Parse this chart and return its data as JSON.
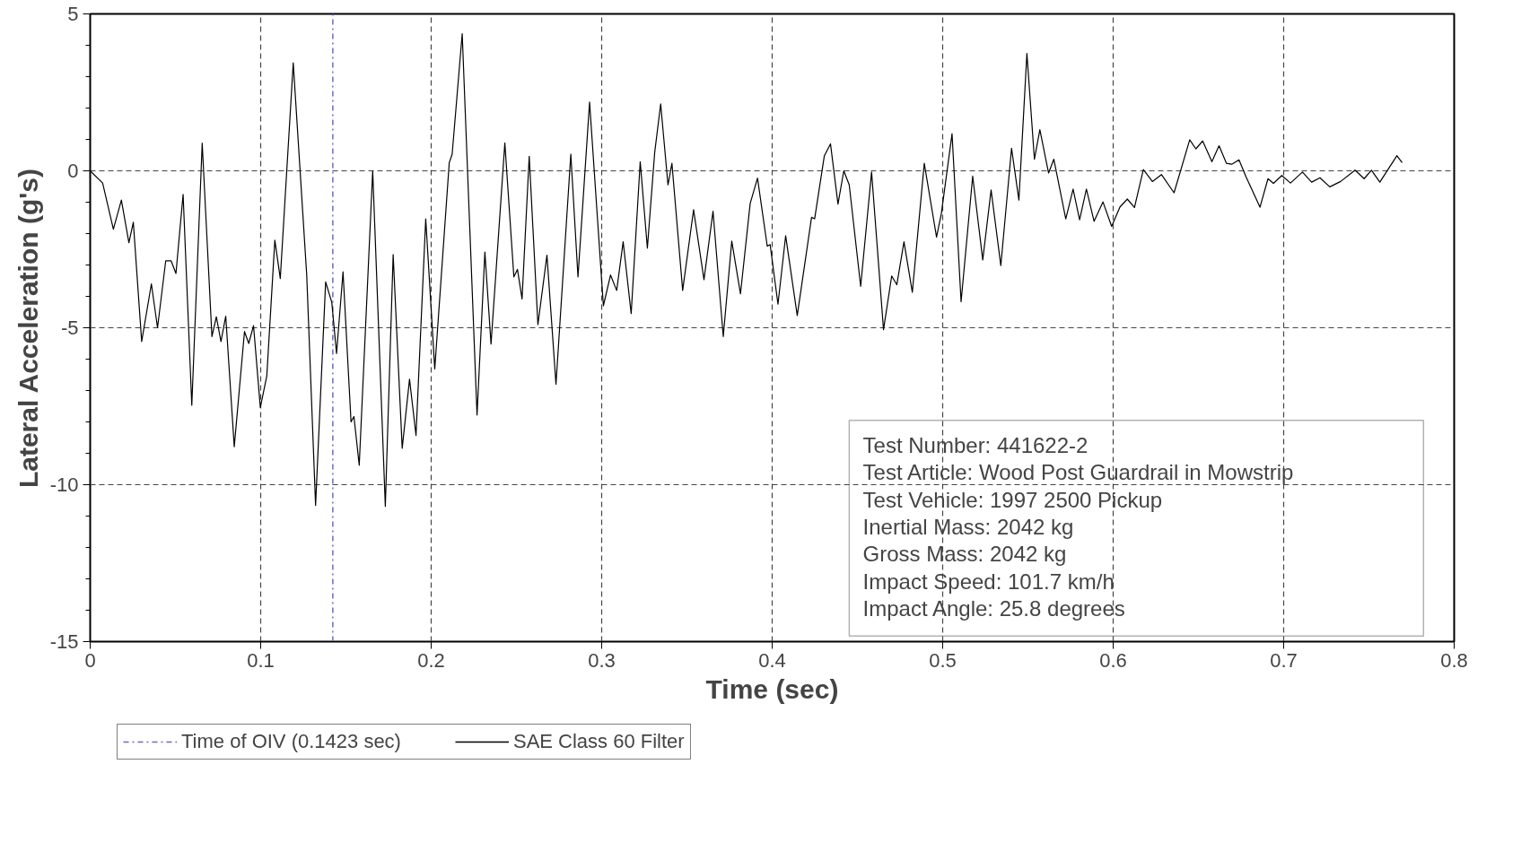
{
  "chart_data": {
    "type": "line",
    "xlabel": "Time (sec)",
    "ylabel": "Lateral Acceleration (g's)",
    "xlim": [
      0,
      0.8
    ],
    "ylim": [
      -15,
      5
    ],
    "xticks": [
      0,
      0.1,
      0.2,
      0.3,
      0.4,
      0.5,
      0.6,
      0.7,
      0.8
    ],
    "yticks": [
      -15,
      -10,
      -5,
      0,
      5
    ],
    "grid": true,
    "legend": "bottom",
    "line_style": "solid",
    "marker": "none",
    "ref_lines": [
      {
        "axis": "x",
        "value": 0.1423,
        "label": "Time of OIV (0.1423 sec)",
        "color": "#6a6ac8",
        "line_style": "dashdot"
      }
    ],
    "annotations": [
      "Test Number: 441622-2",
      "Test Article: Wood Post Guardrail in Mowstrip",
      "Test Vehicle: 1997 2500 Pickup",
      "Inertial Mass: 2042 kg",
      "Gross Mass: 2042 kg",
      "Impact Speed: 101.7 km/h",
      "Impact Angle: 25.8 degrees"
    ],
    "series": [
      {
        "name": "SAE Class 60 Filter",
        "color": "#000000",
        "x": [
          0,
          0.0073,
          0.0136,
          0.0183,
          0.0227,
          0.0253,
          0.0302,
          0.0359,
          0.0395,
          0.0443,
          0.0475,
          0.0503,
          0.0545,
          0.0596,
          0.0657,
          0.0714,
          0.074,
          0.0767,
          0.0795,
          0.0845,
          0.0905,
          0.093,
          0.0958,
          0.0998,
          0.1036,
          0.1083,
          0.1115,
          0.1191,
          0.127,
          0.1322,
          0.1381,
          0.1417,
          0.1445,
          0.1483,
          0.153,
          0.1547,
          0.1578,
          0.1657,
          0.1731,
          0.1777,
          0.183,
          0.1873,
          0.1911,
          0.1968,
          0.2021,
          0.2106,
          0.2123,
          0.2182,
          0.2269,
          0.2315,
          0.2351,
          0.2432,
          0.2485,
          0.2506,
          0.2533,
          0.2575,
          0.2626,
          0.2679,
          0.2732,
          0.2819,
          0.2861,
          0.2929,
          0.301,
          0.3052,
          0.3088,
          0.3126,
          0.3173,
          0.3226,
          0.3268,
          0.3311,
          0.3346,
          0.3389,
          0.3412,
          0.3475,
          0.3539,
          0.36,
          0.3653,
          0.3713,
          0.3763,
          0.3814,
          0.3871,
          0.3914,
          0.3971,
          0.3988,
          0.4034,
          0.4079,
          0.4147,
          0.4231,
          0.4249,
          0.4306,
          0.4342,
          0.4386,
          0.442,
          0.4452,
          0.4519,
          0.4583,
          0.4653,
          0.4701,
          0.4731,
          0.4773,
          0.4822,
          0.4892,
          0.4964,
          0.4992,
          0.5055,
          0.5108,
          0.5176,
          0.5235,
          0.5284,
          0.5341,
          0.5404,
          0.5447,
          0.5494,
          0.5538,
          0.557,
          0.5621,
          0.5652,
          0.5722,
          0.5765,
          0.5803,
          0.5843,
          0.5888,
          0.594,
          0.5991,
          0.604,
          0.6083,
          0.6125,
          0.6177,
          0.623,
          0.6283,
          0.6357,
          0.6449,
          0.6485,
          0.6525,
          0.6579,
          0.6621,
          0.6664,
          0.6695,
          0.6738,
          0.678,
          0.6861,
          0.6908,
          0.694,
          0.6989,
          0.704,
          0.711,
          0.7164,
          0.7213,
          0.727,
          0.7334,
          0.7419,
          0.7472,
          0.7515,
          0.7564,
          0.7664,
          0.7695
        ],
        "values": [
          0,
          -0.39,
          -1.86,
          -0.93,
          -2.29,
          -1.64,
          -5.44,
          -3.6,
          -5.0,
          -2.87,
          -2.87,
          -3.27,
          -0.75,
          -7.47,
          0.88,
          -5.28,
          -4.65,
          -5.44,
          -4.63,
          -8.79,
          -5.12,
          -5.5,
          -4.93,
          -7.54,
          -6.53,
          -2.21,
          -3.43,
          3.44,
          -3.32,
          -10.66,
          -3.54,
          -4.19,
          -5.82,
          -3.22,
          -8.0,
          -7.83,
          -9.38,
          0,
          -10.69,
          -2.67,
          -8.84,
          -6.64,
          -8.43,
          -1.53,
          -6.31,
          0.26,
          0.53,
          4.37,
          -7.78,
          -2.59,
          -5.52,
          0.89,
          -3.38,
          -3.14,
          -4.08,
          0.46,
          -4.9,
          -2.69,
          -6.8,
          0.53,
          -3.38,
          2.19,
          -4.3,
          -3.32,
          -3.81,
          -2.26,
          -4.55,
          0.29,
          -2.46,
          0.59,
          2.13,
          -0.45,
          0.24,
          -3.81,
          -1.24,
          -3.47,
          -1.29,
          -5.28,
          -2.24,
          -3.92,
          -1.04,
          -0.23,
          -2.4,
          -2.35,
          -4.25,
          -2.07,
          -4.61,
          -1.48,
          -1.53,
          0.48,
          0.86,
          -1.06,
          0,
          -0.45,
          -3.68,
          -0.04,
          -5.06,
          -3.35,
          -3.63,
          -2.26,
          -3.87,
          0.24,
          -2.11,
          -1.37,
          1.18,
          -4.17,
          -0.17,
          -2.84,
          -0.61,
          -3.02,
          0.72,
          -0.93,
          3.74,
          0.37,
          1.31,
          -0.07,
          0.37,
          -1.53,
          -0.58,
          -1.56,
          -0.58,
          -1.61,
          -0.99,
          -1.77,
          -1.15,
          -0.9,
          -1.17,
          0.04,
          -0.34,
          -0.12,
          -0.7,
          0.99,
          0.7,
          0.95,
          0.29,
          0.8,
          0.24,
          0.21,
          0.35,
          -0.2,
          -1.16,
          -0.25,
          -0.4,
          -0.15,
          -0.39,
          -0.04,
          -0.36,
          -0.22,
          -0.51,
          -0.34,
          0.02,
          -0.25,
          0.02,
          -0.36,
          0.48,
          0.26
        ]
      }
    ]
  }
}
